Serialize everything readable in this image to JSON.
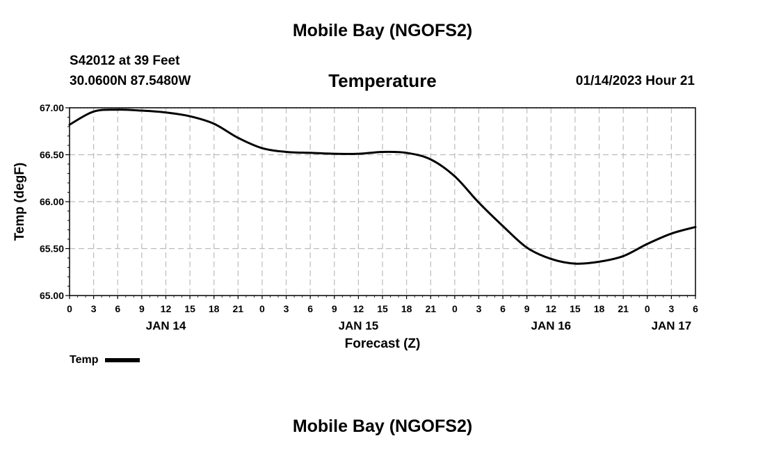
{
  "page": {
    "title_top": "Mobile Bay (NGOFS2)",
    "title_bottom": "Mobile Bay (NGOFS2)",
    "station": "S42012 at 39 Feet",
    "coords": "30.0600N  87.5480W",
    "timestamp": "01/14/2023 Hour 21"
  },
  "chart_data": {
    "type": "line",
    "title": "Temperature",
    "xlabel": "Forecast (Z)",
    "ylabel": "Temp (degF)",
    "xlim": [
      0,
      78
    ],
    "ylim": [
      65.0,
      67.0
    ],
    "y_ticks": [
      "65.00",
      "65.50",
      "66.00",
      "66.50",
      "67.00"
    ],
    "x_tick_hours": [
      0,
      3,
      6,
      9,
      12,
      15,
      18,
      21,
      24,
      27,
      30,
      33,
      36,
      39,
      42,
      45,
      48,
      51,
      54,
      57,
      60,
      63,
      66,
      69,
      72,
      75,
      78
    ],
    "x_tick_labels": [
      "0",
      "3",
      "6",
      "9",
      "12",
      "15",
      "18",
      "21",
      "0",
      "3",
      "6",
      "9",
      "12",
      "15",
      "18",
      "21",
      "0",
      "3",
      "6",
      "9",
      "12",
      "15",
      "18",
      "21",
      "0",
      "3",
      "6"
    ],
    "day_labels": [
      {
        "label": "JAN 14",
        "hour": 12
      },
      {
        "label": "JAN 15",
        "hour": 36
      },
      {
        "label": "JAN 16",
        "hour": 60
      },
      {
        "label": "JAN 17",
        "hour": 75
      }
    ],
    "grid": true,
    "legend_position": "bottom-left",
    "series": [
      {
        "name": "Temp",
        "color": "#000000",
        "x": [
          0,
          3,
          6,
          9,
          12,
          15,
          18,
          21,
          24,
          27,
          30,
          33,
          36,
          39,
          42,
          45,
          48,
          51,
          54,
          57,
          60,
          63,
          66,
          69,
          72,
          75,
          78
        ],
        "y": [
          66.82,
          66.96,
          66.98,
          66.97,
          66.95,
          66.91,
          66.83,
          66.68,
          66.57,
          66.53,
          66.52,
          66.51,
          66.51,
          66.53,
          66.52,
          66.45,
          66.27,
          65.99,
          65.74,
          65.51,
          65.39,
          65.34,
          65.36,
          65.42,
          65.55,
          65.66,
          65.73
        ]
      }
    ]
  }
}
